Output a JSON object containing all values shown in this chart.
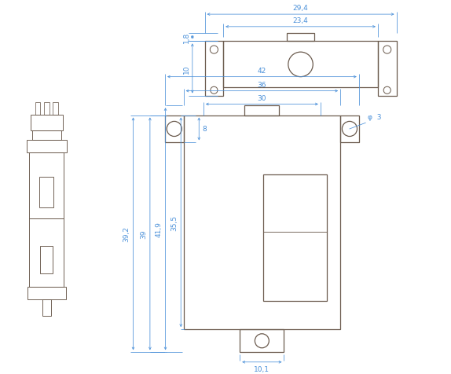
{
  "bg_color": "#ffffff",
  "line_color": "#6b5b4e",
  "dim_color": "#4a90d9",
  "figsize": [
    5.74,
    4.77
  ],
  "dpi": 100,
  "annotations": {
    "dim_29_4": "29,4",
    "dim_23_4": "23,4",
    "dim_1_8": "1,8",
    "dim_10": "10",
    "dim_42": "42",
    "dim_36": "36",
    "dim_30": "30",
    "dim_8": "8",
    "dim_39_2": "39,2",
    "dim_39": "39",
    "dim_41_9": "41,9",
    "dim_35_5": "35,5",
    "dim_phi3": "φ  3",
    "dim_10_1": "10,1"
  }
}
